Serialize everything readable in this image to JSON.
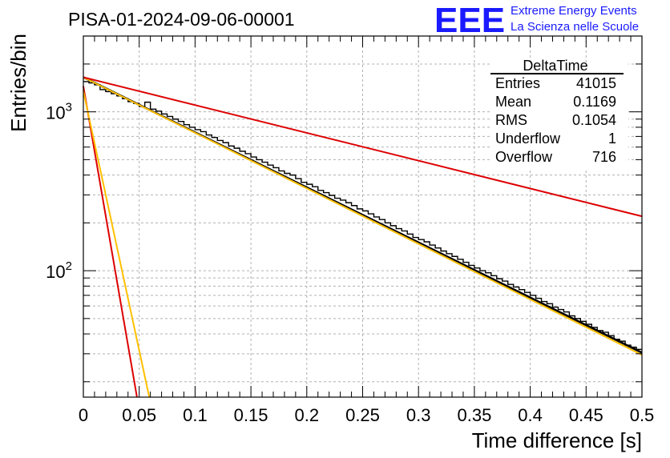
{
  "header": {
    "title": "PISA-01-2024-09-06-00001",
    "logo": {
      "mark": "EEE",
      "line1": "Extreme Energy Events",
      "line2": "La Scienza nelle Scuole",
      "color": "#1a1aff"
    }
  },
  "stats": {
    "title": "DeltaTime",
    "rows": [
      {
        "label": "Entries",
        "value": "41015"
      },
      {
        "label": "Mean",
        "value": "0.1169"
      },
      {
        "label": "RMS",
        "value": "0.1054"
      },
      {
        "label": "Underflow",
        "value": "1"
      },
      {
        "label": "Overflow",
        "value": "716"
      }
    ]
  },
  "chart_data": {
    "type": "line",
    "title": "PISA-01-2024-09-06-00001",
    "xlabel": "Time difference [s]",
    "ylabel": "Entries/bin",
    "xlim": [
      0,
      0.5
    ],
    "ylim": [
      16,
      3000
    ],
    "yscale": "log",
    "grid": true,
    "x_ticks": [
      {
        "value": 0,
        "label": "0"
      },
      {
        "value": 0.05,
        "label": "0.05"
      },
      {
        "value": 0.1,
        "label": "0.1"
      },
      {
        "value": 0.15,
        "label": "0.15"
      },
      {
        "value": 0.2,
        "label": "0.2"
      },
      {
        "value": 0.25,
        "label": "0.25"
      },
      {
        "value": 0.3,
        "label": "0.3"
      },
      {
        "value": 0.35,
        "label": "0.35"
      },
      {
        "value": 0.4,
        "label": "0.4"
      },
      {
        "value": 0.45,
        "label": "0.45"
      },
      {
        "value": 0.5,
        "label": "0.5"
      }
    ],
    "y_ticks": [
      {
        "value": 100,
        "base": "10",
        "exp": "2"
      },
      {
        "value": 1000,
        "base": "10",
        "exp": "3"
      }
    ],
    "histogram": {
      "bin_width": 0.005,
      "x_start": 0,
      "values": [
        1550,
        1520,
        1480,
        1380,
        1340,
        1300,
        1260,
        1210,
        1160,
        1130,
        1080,
        1150,
        1040,
        1010,
        970,
        935,
        900,
        870,
        830,
        800,
        772,
        750,
        715,
        690,
        660,
        640,
        610,
        590,
        565,
        545,
        520,
        500,
        482,
        462,
        445,
        425,
        410,
        400,
        380,
        360,
        350,
        338,
        320,
        310,
        298,
        286,
        278,
        268,
        257,
        245,
        238,
        228,
        218,
        210,
        200,
        192,
        184,
        178,
        170,
        162,
        157,
        152,
        145,
        139,
        133,
        128,
        123,
        118,
        113,
        108,
        104,
        100,
        97,
        93,
        89,
        86,
        82,
        79,
        76,
        73,
        70,
        67,
        64,
        62,
        59,
        57,
        55,
        52,
        50,
        48,
        46,
        44,
        42,
        41,
        39,
        37,
        36,
        34,
        33,
        32
      ]
    },
    "series": [
      {
        "color": "#000000",
        "x": [
          0,
          0.5
        ],
        "y": [
          1650,
          30.5
        ]
      },
      {
        "color": "#ffc000",
        "x": [
          0,
          0.5
        ],
        "y": [
          1650,
          29.5
        ]
      },
      {
        "color": "#dd0000",
        "x": [
          0,
          0.5
        ],
        "y": [
          1650,
          220
        ]
      },
      {
        "color": "#dd0000",
        "x": [
          0,
          0.048
        ],
        "y": [
          1450,
          16
        ]
      },
      {
        "color": "#ffc000",
        "x": [
          0,
          0.059
        ],
        "y": [
          1350,
          16
        ]
      }
    ]
  }
}
